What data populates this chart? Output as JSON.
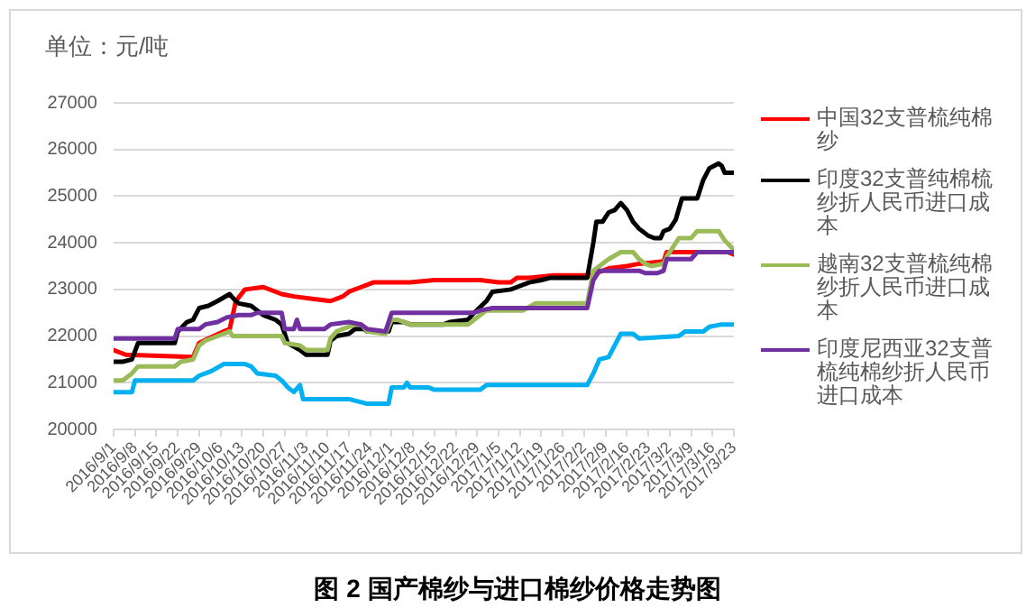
{
  "chart_data": {
    "type": "line",
    "title": "图 2 国产棉纱与进口棉纱价格走势图",
    "ylabel": "单位：元/吨",
    "xlim": [
      "2016-09-01",
      "2017-03-23"
    ],
    "xticks": [
      {
        "value": "2016-09-01",
        "label": "2016/9/1"
      },
      {
        "value": "2016-09-08",
        "label": "2016/9/8"
      },
      {
        "value": "2016-09-15",
        "label": "2016/9/15"
      },
      {
        "value": "2016-09-22",
        "label": "2016/9/22"
      },
      {
        "value": "2016-09-29",
        "label": "2016/9/29"
      },
      {
        "value": "2016-10-06",
        "label": "2016/10/6"
      },
      {
        "value": "2016-10-13",
        "label": "2016/10/13"
      },
      {
        "value": "2016-10-20",
        "label": "2016/10/20"
      },
      {
        "value": "2016-10-27",
        "label": "2016/10/27"
      },
      {
        "value": "2016-11-03",
        "label": "2016/11/3"
      },
      {
        "value": "2016-11-10",
        "label": "2016/11/10"
      },
      {
        "value": "2016-11-17",
        "label": "2016/11/17"
      },
      {
        "value": "2016-11-24",
        "label": "2016/11/24"
      },
      {
        "value": "2016-12-01",
        "label": "2016/12/1"
      },
      {
        "value": "2016-12-08",
        "label": "2016/12/8"
      },
      {
        "value": "2016-12-15",
        "label": "2016/12/15"
      },
      {
        "value": "2016-12-22",
        "label": "2016/12/22"
      },
      {
        "value": "2016-12-29",
        "label": "2016/12/29"
      },
      {
        "value": "2017-01-05",
        "label": "2017/1/5"
      },
      {
        "value": "2017-01-12",
        "label": "2017/1/12"
      },
      {
        "value": "2017-01-19",
        "label": "2017/1/19"
      },
      {
        "value": "2017-01-26",
        "label": "2017/1/26"
      },
      {
        "value": "2017-02-02",
        "label": "2017/2/2"
      },
      {
        "value": "2017-02-09",
        "label": "2017/2/9"
      },
      {
        "value": "2017-02-16",
        "label": "2017/2/16"
      },
      {
        "value": "2017-02-23",
        "label": "2017/2/23"
      },
      {
        "value": "2017-03-02",
        "label": "2017/3/2"
      },
      {
        "value": "2017-03-09",
        "label": "2017/3/9"
      },
      {
        "value": "2017-03-16",
        "label": "2017/3/16"
      },
      {
        "value": "2017-03-23",
        "label": "2017/3/23"
      }
    ],
    "ylim": [
      20000,
      27000
    ],
    "yticks": [
      20000,
      21000,
      22000,
      23000,
      24000,
      25000,
      26000,
      27000
    ],
    "grid": "y",
    "legend": "right",
    "marker": "none",
    "series": [
      {
        "name": "中国32支普梳纯棉纱",
        "color": "#ff0000",
        "x": [
          "2016-09-01",
          "2016-09-05",
          "2016-09-27",
          "2016-09-29",
          "2016-10-02",
          "2016-10-07",
          "2016-10-09",
          "2016-10-11",
          "2016-10-14",
          "2016-10-20",
          "2016-10-26",
          "2016-10-30",
          "2016-11-05",
          "2016-11-11",
          "2016-11-15",
          "2016-11-17",
          "2016-11-21",
          "2016-11-25",
          "2016-12-07",
          "2016-12-15",
          "2016-12-30",
          "2017-01-05",
          "2017-01-09",
          "2017-01-11",
          "2017-01-15",
          "2017-01-23",
          "2017-02-04",
          "2017-02-06",
          "2017-02-10",
          "2017-02-16",
          "2017-02-20",
          "2017-02-28",
          "2017-03-01",
          "2017-03-05",
          "2017-03-21",
          "2017-03-23"
        ],
        "values": [
          21700,
          21600,
          21550,
          21850,
          21950,
          22100,
          22150,
          22750,
          23000,
          23050,
          22900,
          22850,
          22800,
          22750,
          22850,
          22950,
          23050,
          23150,
          23150,
          23200,
          23200,
          23150,
          23150,
          23250,
          23250,
          23300,
          23300,
          23350,
          23450,
          23500,
          23550,
          23600,
          23800,
          23800,
          23800,
          23750
        ]
      },
      {
        "name": "印度32支普纯棉梳纱折人民币进口成本",
        "color": "#000000",
        "x": [
          "2016-09-01",
          "2016-09-04",
          "2016-09-07",
          "2016-09-09",
          "2016-09-21",
          "2016-09-22",
          "2016-09-25",
          "2016-09-27",
          "2016-09-29",
          "2016-10-02",
          "2016-10-05",
          "2016-10-09",
          "2016-10-11",
          "2016-10-12",
          "2016-10-16",
          "2016-10-18",
          "2016-10-20",
          "2016-10-24",
          "2016-10-26",
          "2016-10-28",
          "2016-11-01",
          "2016-11-03",
          "2016-11-10",
          "2016-11-11",
          "2016-11-13",
          "2016-11-17",
          "2016-11-19",
          "2016-11-22",
          "2016-11-23",
          "2016-11-30",
          "2016-12-01",
          "2016-12-05",
          "2016-12-07",
          "2016-12-18",
          "2016-12-20",
          "2016-12-26",
          "2016-12-28",
          "2017-01-01",
          "2017-01-03",
          "2017-01-09",
          "2017-01-11",
          "2017-01-15",
          "2017-01-19",
          "2017-01-22",
          "2017-02-03",
          "2017-02-05",
          "2017-02-06",
          "2017-02-08",
          "2017-02-10",
          "2017-02-12",
          "2017-02-14",
          "2017-02-16",
          "2017-02-18",
          "2017-02-20",
          "2017-02-23",
          "2017-02-25",
          "2017-02-27",
          "2017-02-28",
          "2017-03-02",
          "2017-03-04",
          "2017-03-06",
          "2017-03-11",
          "2017-03-13",
          "2017-03-15",
          "2017-03-18",
          "2017-03-19",
          "2017-03-20",
          "2017-03-23"
        ],
        "values": [
          21450,
          21450,
          21500,
          21850,
          21850,
          22100,
          22300,
          22350,
          22600,
          22650,
          22750,
          22900,
          22750,
          22700,
          22650,
          22550,
          22450,
          22350,
          22250,
          21850,
          21700,
          21600,
          21600,
          21900,
          22000,
          22050,
          22150,
          22150,
          22100,
          22100,
          22300,
          22300,
          22250,
          22250,
          22300,
          22350,
          22500,
          22750,
          22950,
          23000,
          23050,
          23150,
          23200,
          23250,
          23250,
          24000,
          24450,
          24450,
          24650,
          24700,
          24850,
          24700,
          24450,
          24300,
          24150,
          24100,
          24100,
          24250,
          24300,
          24500,
          24950,
          24950,
          25350,
          25600,
          25700,
          25650,
          25500,
          25500
        ]
      },
      {
        "name": "越南32支普梳纯棉纱折人民币进口成本",
        "color": "#9bbb59",
        "x": [
          "2016-09-01",
          "2016-09-04",
          "2016-09-07",
          "2016-09-09",
          "2016-09-21",
          "2016-09-23",
          "2016-09-27",
          "2016-09-29",
          "2016-10-01",
          "2016-10-07",
          "2016-10-09",
          "2016-10-10",
          "2016-10-26",
          "2016-10-27",
          "2016-11-01",
          "2016-11-03",
          "2016-11-10",
          "2016-11-11",
          "2016-11-13",
          "2016-11-19",
          "2016-11-21",
          "2016-11-23",
          "2016-11-29",
          "2016-12-01",
          "2016-12-03",
          "2016-12-07",
          "2016-12-26",
          "2016-12-28",
          "2016-12-30",
          "2017-01-01",
          "2017-01-13",
          "2017-01-17",
          "2017-02-03",
          "2017-02-05",
          "2017-02-07",
          "2017-02-10",
          "2017-02-14",
          "2017-02-18",
          "2017-02-20",
          "2017-02-22",
          "2017-02-24",
          "2017-02-28",
          "2017-03-01",
          "2017-03-03",
          "2017-03-05",
          "2017-03-09",
          "2017-03-11",
          "2017-03-18",
          "2017-03-20",
          "2017-03-23"
        ],
        "values": [
          21050,
          21050,
          21200,
          21350,
          21350,
          21450,
          21500,
          21800,
          21900,
          22050,
          22100,
          22000,
          22000,
          21850,
          21800,
          21700,
          21700,
          21950,
          22100,
          22250,
          22250,
          22100,
          22050,
          22350,
          22350,
          22250,
          22250,
          22350,
          22450,
          22550,
          22550,
          22700,
          22700,
          23400,
          23500,
          23650,
          23800,
          23800,
          23650,
          23550,
          23500,
          23550,
          23700,
          23900,
          24100,
          24100,
          24250,
          24250,
          24050,
          23850
        ]
      },
      {
        "name": "印度尼西亚32支普梳纯棉纱折人民币进口成本",
        "color": "#7030a0",
        "x": [
          "2016-09-01",
          "2016-09-21",
          "2016-09-22",
          "2016-09-29",
          "2016-10-01",
          "2016-10-05",
          "2016-10-08",
          "2016-10-12",
          "2016-10-16",
          "2016-10-18",
          "2016-10-26",
          "2016-10-27",
          "2016-10-30",
          "2016-10-31",
          "2016-11-01",
          "2016-11-09",
          "2016-11-11",
          "2016-11-17",
          "2016-11-21",
          "2016-11-23",
          "2016-11-29",
          "2016-12-01",
          "2016-12-28",
          "2016-12-30",
          "2017-01-03",
          "2017-02-03",
          "2017-02-05",
          "2017-02-07",
          "2017-02-20",
          "2017-02-22",
          "2017-02-26",
          "2017-02-28",
          "2017-03-01",
          "2017-03-09",
          "2017-03-11",
          "2017-03-23"
        ],
        "values": [
          21950,
          21950,
          22150,
          22150,
          22250,
          22300,
          22400,
          22450,
          22450,
          22500,
          22500,
          22150,
          22150,
          22350,
          22150,
          22150,
          22250,
          22300,
          22250,
          22150,
          22100,
          22500,
          22500,
          22550,
          22600,
          22600,
          23200,
          23400,
          23400,
          23350,
          23350,
          23400,
          23650,
          23650,
          23800,
          23800
        ]
      },
      {
        "color": "#00b0f0",
        "x": [
          "2016-09-01",
          "2016-09-07",
          "2016-09-08",
          "2016-09-27",
          "2016-09-29",
          "2016-10-03",
          "2016-10-07",
          "2016-10-14",
          "2016-10-16",
          "2016-10-18",
          "2016-10-24",
          "2016-10-26",
          "2016-10-28",
          "2016-10-30",
          "2016-11-01",
          "2016-11-02",
          "2016-11-17",
          "2016-11-23",
          "2016-11-30",
          "2016-12-01",
          "2016-12-05",
          "2016-12-06",
          "2016-12-07",
          "2016-12-13",
          "2016-12-15",
          "2016-12-30",
          "2017-01-01",
          "2017-02-03",
          "2017-02-05",
          "2017-02-07",
          "2017-02-10",
          "2017-02-12",
          "2017-02-14",
          "2017-02-18",
          "2017-02-20",
          "2017-03-05",
          "2017-03-07",
          "2017-03-13",
          "2017-03-15",
          "2017-03-19",
          "2017-03-23"
        ],
        "values": [
          20800,
          20800,
          21050,
          21050,
          21150,
          21250,
          21400,
          21400,
          21350,
          21200,
          21150,
          21050,
          20900,
          20800,
          20950,
          20650,
          20650,
          20550,
          20550,
          20900,
          20900,
          21000,
          20900,
          20900,
          20850,
          20850,
          20950,
          20950,
          21200,
          21500,
          21550,
          21800,
          22050,
          22050,
          21950,
          22000,
          22100,
          22100,
          22200,
          22250,
          22250
        ]
      }
    ]
  }
}
